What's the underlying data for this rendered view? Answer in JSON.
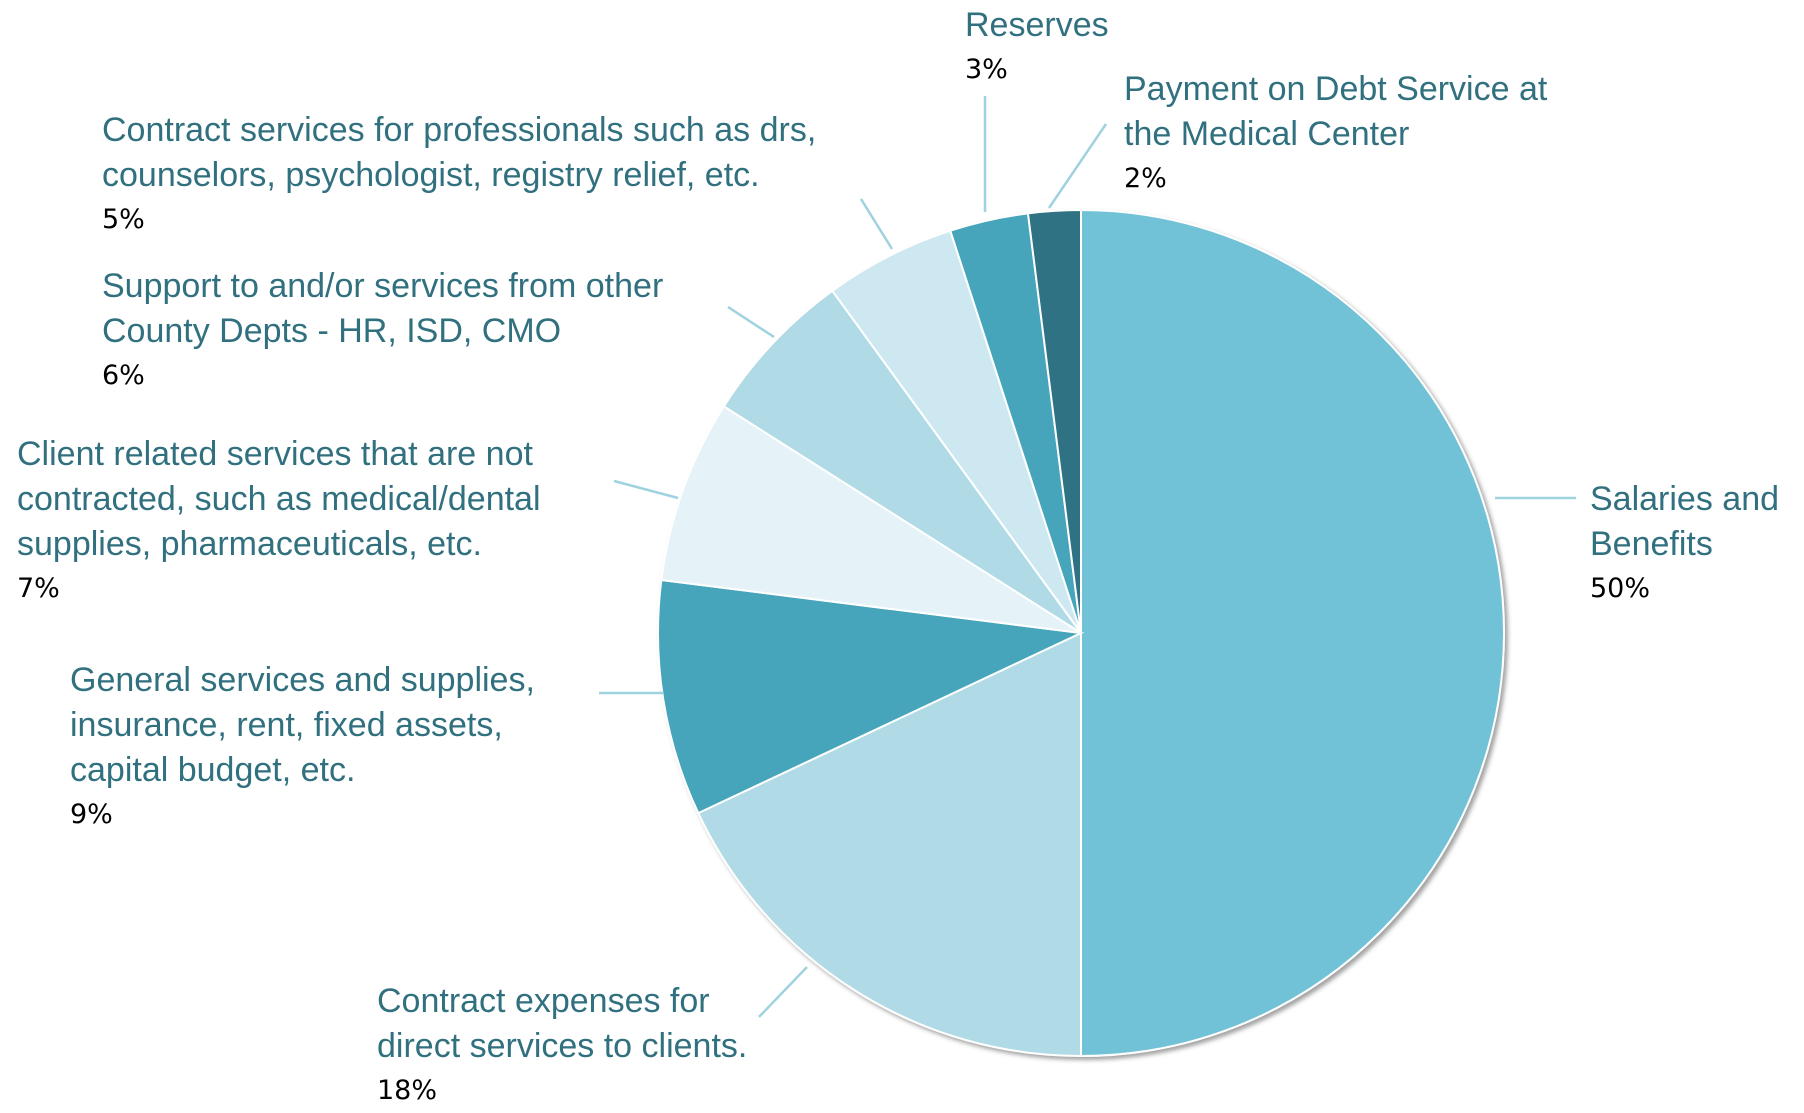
{
  "chart_data": {
    "type": "pie",
    "categories": [
      "Salaries and\nBenefits",
      "Contract expenses for\ndirect services to clients.",
      "General services and supplies,\ninsurance, rent, fixed assets,\ncapital budget, etc.",
      "Client related services that are not\ncontracted, such as medical/dental\nsupplies, pharmaceuticals, etc.",
      "Support to and/or services from other\nCounty Depts - HR, ISD, CMO",
      "Contract services for professionals such as drs,\ncounselors, psychologist, registry relief, etc.",
      "Reserves",
      "Payment on Debt Service at\nthe Medical Center"
    ],
    "values": [
      50,
      18,
      9,
      7,
      6,
      5,
      3,
      2
    ],
    "value_labels": [
      "50%",
      "18%",
      "9%",
      "7%",
      "6%",
      "5%",
      "3%",
      "2%"
    ],
    "colors": [
      "#72c2d7",
      "#b0dae6",
      "#46a5bb",
      "#e5f2f8",
      "#b0dae6",
      "#cde8f0",
      "#46a5bb",
      "#2d7283"
    ]
  }
}
